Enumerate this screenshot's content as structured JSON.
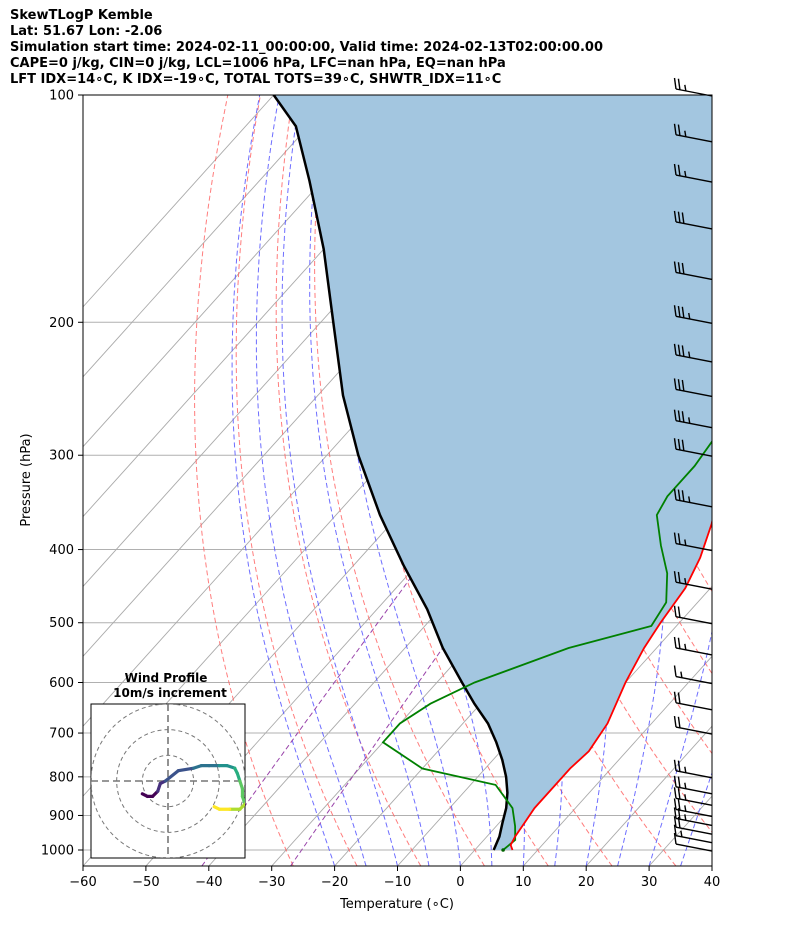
{
  "header": {
    "line1": "SkewTLogP Kemble",
    "line2": "Lat: 51.67   Lon: -2.06",
    "line3": "Simulation start time: 2024-02-11_00:00:00, Valid time: 2024-02-13T02:00:00.00",
    "line4": "CAPE=0 j/kg, CIN=0 j/kg, LCL=1006 hPa, LFC=nan hPa, EQ=nan hPa",
    "line5": "LFT IDX=14∘C, K IDX=-19∘C, TOTAL TOTS=39∘C, SHWTR_IDX=11∘C"
  },
  "chart_data": {
    "type": "line",
    "title": "SkewTLogP Kemble",
    "xlabel": "Temperature (∘C)",
    "ylabel": "Pressure (hPa)",
    "xlim": [
      -60,
      40
    ],
    "ylim": [
      1050,
      100
    ],
    "x_ticks": [
      -60,
      -50,
      -40,
      -30,
      -20,
      -10,
      0,
      10,
      20,
      30,
      40
    ],
    "y_ticks": [
      100,
      200,
      300,
      400,
      500,
      600,
      700,
      800,
      900,
      1000
    ],
    "colors": {
      "temperature": "#ff0000",
      "dewpoint": "#008000",
      "parcel": "#000000",
      "cape_fill": "#a3c6e0",
      "isotherm": "#aaaaaa",
      "dry_adiabat": "#ff6666",
      "moist_adiabat": "#5555ff",
      "mixing_ratio": "#9944aa"
    },
    "series": [
      {
        "name": "Temperature",
        "points": [
          [
            6,
            1000
          ],
          [
            5,
            985
          ],
          [
            4.5,
            960
          ],
          [
            4,
            920
          ],
          [
            3.5,
            880
          ],
          [
            3.5,
            820
          ],
          [
            3.5,
            780
          ],
          [
            4,
            740
          ],
          [
            3,
            680
          ],
          [
            0,
            600
          ],
          [
            -2,
            540
          ],
          [
            -3,
            500
          ],
          [
            -4,
            450
          ],
          [
            -6,
            410
          ],
          [
            -9,
            370
          ],
          [
            -13,
            330
          ],
          [
            -18,
            290
          ],
          [
            -18,
            265
          ],
          [
            -15,
            245
          ],
          [
            -11,
            230
          ],
          [
            -4,
            215
          ],
          [
            0,
            200
          ],
          [
            4,
            185
          ],
          [
            8,
            170
          ],
          [
            12,
            160
          ],
          [
            15,
            150
          ],
          [
            18,
            140
          ],
          [
            20,
            130
          ],
          [
            21,
            120
          ],
          [
            22,
            110
          ],
          [
            22,
            100
          ]
        ]
      },
      {
        "name": "Dewpoint",
        "points": [
          [
            4.5,
            1000
          ],
          [
            5,
            970
          ],
          [
            3,
            930
          ],
          [
            0,
            880
          ],
          [
            -6,
            820
          ],
          [
            -20,
            780
          ],
          [
            -30,
            720
          ],
          [
            -30,
            680
          ],
          [
            -28,
            640
          ],
          [
            -24,
            600
          ],
          [
            -14,
            540
          ],
          [
            -4,
            505
          ],
          [
            -5,
            470
          ],
          [
            -9,
            430
          ],
          [
            -14,
            395
          ],
          [
            -19,
            360
          ],
          [
            -20,
            340
          ],
          [
            -20,
            310
          ],
          [
            -21,
            280
          ],
          [
            -24,
            255
          ],
          [
            -23,
            235
          ],
          [
            -21,
            225
          ],
          [
            -20,
            215
          ],
          [
            -22,
            200
          ],
          [
            -28,
            185
          ],
          [
            -27,
            170
          ],
          [
            -23,
            150
          ],
          [
            -19,
            130
          ],
          [
            -16,
            115
          ],
          [
            -13,
            100
          ]
        ]
      },
      {
        "name": "Parcel",
        "points": [
          [
            3,
            1000
          ],
          [
            2,
            960
          ],
          [
            0.5,
            920
          ],
          [
            -1,
            880
          ],
          [
            -3,
            840
          ],
          [
            -5.5,
            800
          ],
          [
            -8.5,
            760
          ],
          [
            -12,
            720
          ],
          [
            -16,
            680
          ],
          [
            -21,
            640
          ],
          [
            -26,
            600
          ],
          [
            -34,
            540
          ],
          [
            -42,
            480
          ],
          [
            -52,
            420
          ],
          [
            -63,
            360
          ],
          [
            -75,
            300
          ],
          [
            -86,
            250
          ],
          [
            -98,
            200
          ],
          [
            -110,
            160
          ],
          [
            -122,
            130
          ],
          [
            -132,
            110
          ],
          [
            -140,
            100
          ]
        ]
      }
    ],
    "wind_barbs": {
      "pressures": [
        1000,
        975,
        950,
        925,
        900,
        870,
        840,
        800,
        700,
        650,
        600,
        550,
        500,
        450,
        400,
        350,
        300,
        275,
        250,
        225,
        200,
        175,
        150,
        130,
        115,
        100
      ],
      "speeds_kt": [
        10,
        15,
        20,
        25,
        25,
        25,
        25,
        25,
        20,
        20,
        15,
        25,
        20,
        25,
        25,
        35,
        30,
        35,
        30,
        35,
        35,
        30,
        30,
        25,
        25,
        25
      ]
    },
    "hodograph": {
      "title": "Wind Profile",
      "subtitle": "10m/s increment",
      "rings_ms": [
        10,
        20,
        30
      ],
      "range_ms": 30,
      "points": [
        [
          -10,
          -5
        ],
        [
          -8,
          -6
        ],
        [
          -6,
          -6
        ],
        [
          -4,
          -4
        ],
        [
          -3,
          -1
        ],
        [
          -1,
          0
        ],
        [
          4,
          4
        ],
        [
          10,
          5
        ],
        [
          13,
          6
        ],
        [
          16,
          6
        ],
        [
          20,
          6
        ],
        [
          23,
          6
        ],
        [
          26,
          5
        ],
        [
          27,
          3
        ],
        [
          28,
          0
        ],
        [
          29,
          -3
        ],
        [
          29,
          -6
        ],
        [
          30,
          -9
        ],
        [
          28,
          -11
        ],
        [
          24,
          -11
        ],
        [
          20,
          -11
        ],
        [
          18,
          -10
        ]
      ]
    }
  }
}
